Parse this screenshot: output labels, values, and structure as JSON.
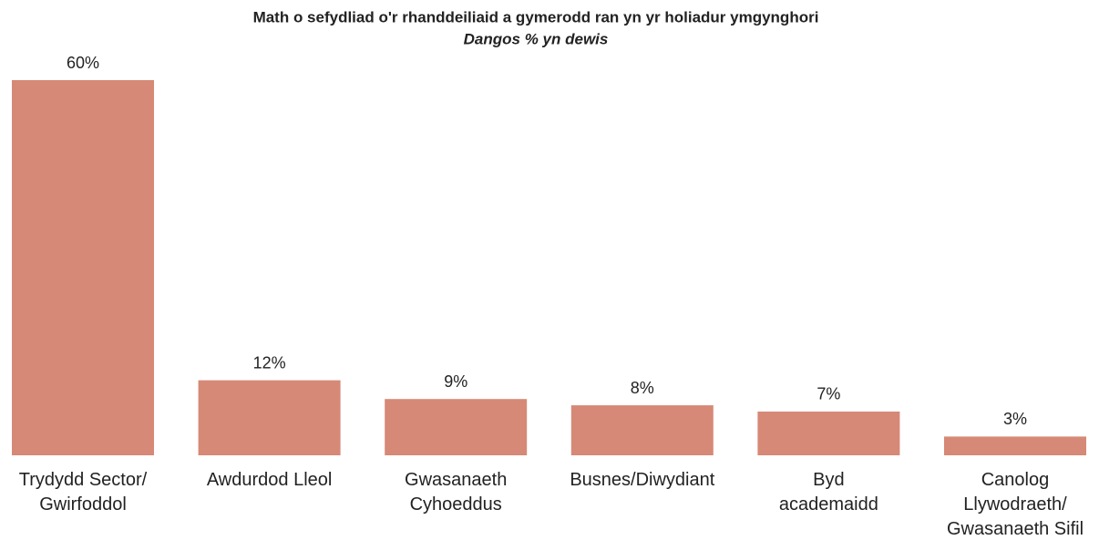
{
  "chart_data": {
    "type": "bar",
    "title": "Math o sefydliad o'r rhanddeiliaid a gymerodd ran yn yr holiadur ymgynghori",
    "subtitle": "Dangos % yn dewis",
    "categories": [
      "Trydydd Sector/\nGwirfoddol",
      "Awdurdod Lleol",
      "Gwasanaeth\nCyhoeddus",
      "Busnes/Diwydiant",
      "Byd\nacademaidd",
      "Canolog\nLlywodraeth/\nGwasanaeth Sifil"
    ],
    "values": [
      60,
      12,
      9,
      8,
      7,
      3
    ],
    "value_labels": [
      "60%",
      "12%",
      "9%",
      "8%",
      "7%",
      "3%"
    ],
    "color": "#d68976"
  }
}
